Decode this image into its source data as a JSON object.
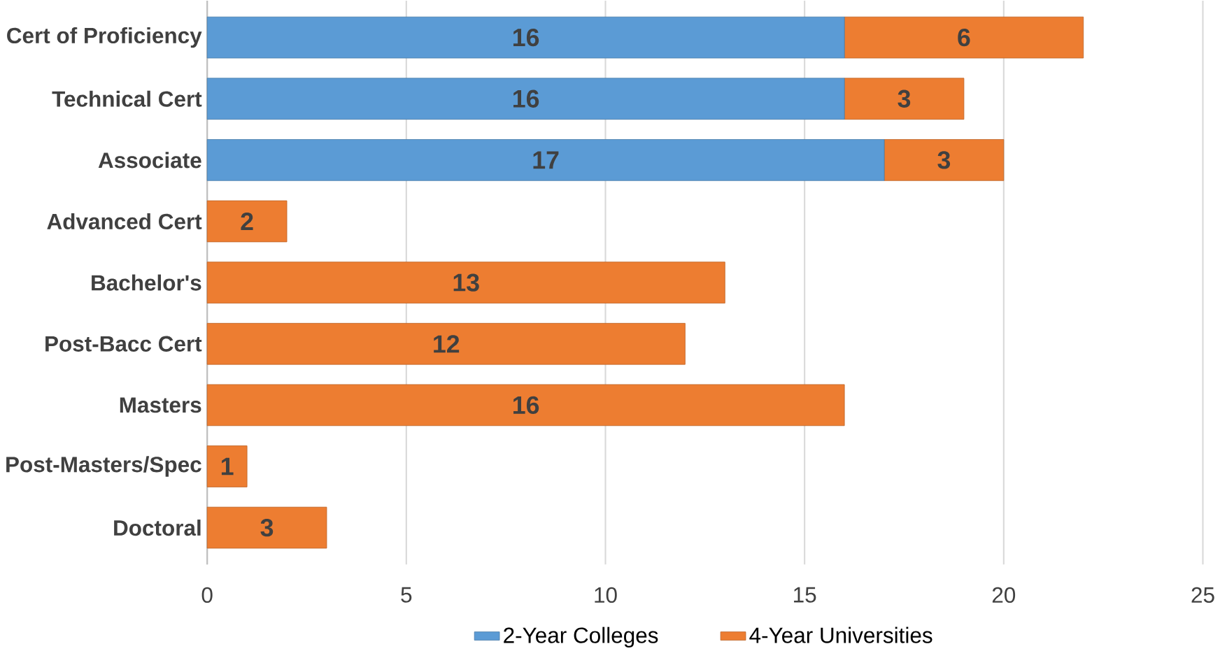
{
  "chart_data": {
    "type": "bar",
    "orientation": "horizontal",
    "stacked": true,
    "categories": [
      "Cert of Proficiency",
      "Technical Cert",
      "Associate",
      "Advanced Cert",
      "Bachelor's",
      "Post-Bacc Cert",
      "Masters",
      "Post-Masters/Spec",
      "Doctoral"
    ],
    "series": [
      {
        "name": "2-Year Colleges",
        "color": "#5b9bd5",
        "values": [
          16,
          16,
          17,
          null,
          null,
          null,
          null,
          null,
          null
        ]
      },
      {
        "name": "4-Year Universities",
        "color": "#ed7d31",
        "values": [
          6,
          3,
          3,
          2,
          13,
          12,
          16,
          1,
          3
        ]
      }
    ],
    "xlim": [
      0,
      25
    ],
    "xticks": [
      0,
      5,
      10,
      15,
      20,
      25
    ],
    "grid": "x",
    "legend": "bottom",
    "data_labels": true
  }
}
